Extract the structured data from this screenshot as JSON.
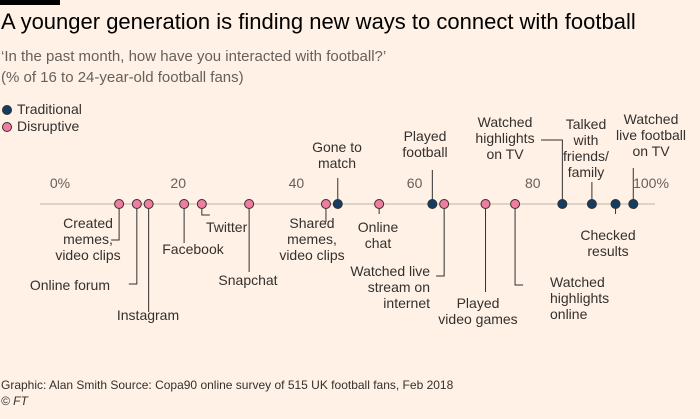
{
  "title": "A younger generation is finding new ways to connect with football",
  "subtitle": "‘In the past month, how have you interacted with football?’",
  "subtitle2": "(% of 16 to 24-year-old football fans)",
  "legend": [
    {
      "label": "Traditional",
      "color": "#153d63"
    },
    {
      "label": "Disruptive",
      "color": "#f07ca0"
    }
  ],
  "footer": {
    "source": "Graphic: Alan Smith   Source: Copa90 online survey of 515 UK football fans, Feb 2018",
    "copyright": "© FT"
  },
  "chart_data": {
    "type": "scatter",
    "title": "A younger generation is finding new ways to connect with football",
    "xlim": [
      0,
      100
    ],
    "ticks": [
      {
        "value": 0,
        "label": "0%"
      },
      {
        "value": 20,
        "label": "20"
      },
      {
        "value": 40,
        "label": "40"
      },
      {
        "value": 60,
        "label": "60"
      },
      {
        "value": 80,
        "label": "80"
      },
      {
        "value": 100,
        "label": "100%"
      }
    ],
    "series": [
      {
        "name": "Traditional",
        "color": "#153d63"
      },
      {
        "name": "Disruptive",
        "color": "#f07ca0"
      }
    ],
    "points": [
      {
        "label": "Created memes, video clips",
        "value": 10,
        "series": "Disruptive"
      },
      {
        "label": "Online forum",
        "value": 13,
        "series": "Disruptive"
      },
      {
        "label": "Instagram",
        "value": 15,
        "series": "Disruptive"
      },
      {
        "label": "Facebook",
        "value": 21,
        "series": "Disruptive"
      },
      {
        "label": "Twitter",
        "value": 24,
        "series": "Disruptive"
      },
      {
        "label": "Snapchat",
        "value": 32,
        "series": "Disruptive"
      },
      {
        "label": "Shared memes, video clips",
        "value": 45,
        "series": "Disruptive"
      },
      {
        "label": "Gone to match",
        "value": 47,
        "series": "Traditional"
      },
      {
        "label": "Online chat",
        "value": 54,
        "series": "Disruptive"
      },
      {
        "label": "Played football",
        "value": 63,
        "series": "Traditional"
      },
      {
        "label": "Watched live stream on internet",
        "value": 65,
        "series": "Disruptive"
      },
      {
        "label": "Played video games",
        "value": 72,
        "series": "Disruptive"
      },
      {
        "label": "Watched highlights online",
        "value": 77,
        "series": "Disruptive"
      },
      {
        "label": "Watched highlights on TV",
        "value": 85,
        "series": "Traditional"
      },
      {
        "label": "Talked with friends/ family",
        "value": 90,
        "series": "Traditional"
      },
      {
        "label": "Checked results",
        "value": 94,
        "series": "Traditional"
      },
      {
        "label": "Watched live football on TV",
        "value": 97,
        "series": "Traditional"
      }
    ]
  }
}
